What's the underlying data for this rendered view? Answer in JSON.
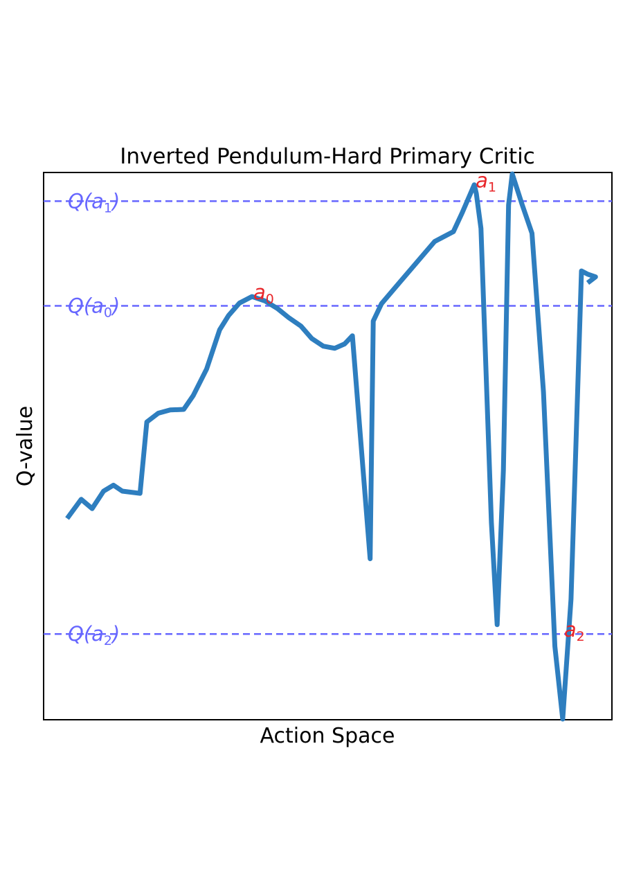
{
  "chart_data": {
    "type": "line",
    "title": "Inverted Pendulum-Hard Primary Critic",
    "xlabel": "Action Space",
    "ylabel": "Q-value",
    "xlim": [
      0,
      1
    ],
    "ylim": [
      0,
      1
    ],
    "ticks_shown": false,
    "grid": false,
    "series": [
      {
        "color": "#2e7ebf",
        "points": [
          [
            0.0,
            0.368
          ],
          [
            0.027,
            0.403
          ],
          [
            0.048,
            0.386
          ],
          [
            0.07,
            0.418
          ],
          [
            0.089,
            0.429
          ],
          [
            0.106,
            0.418
          ],
          [
            0.14,
            0.414
          ],
          [
            0.153,
            0.545
          ],
          [
            0.175,
            0.561
          ],
          [
            0.198,
            0.567
          ],
          [
            0.224,
            0.568
          ],
          [
            0.242,
            0.593
          ],
          [
            0.268,
            0.642
          ],
          [
            0.293,
            0.714
          ],
          [
            0.31,
            0.74
          ],
          [
            0.331,
            0.763
          ],
          [
            0.355,
            0.775
          ],
          [
            0.38,
            0.767
          ],
          [
            0.404,
            0.753
          ],
          [
            0.426,
            0.736
          ],
          [
            0.449,
            0.721
          ],
          [
            0.47,
            0.698
          ],
          [
            0.492,
            0.684
          ],
          [
            0.514,
            0.68
          ],
          [
            0.533,
            0.688
          ],
          [
            0.548,
            0.703
          ],
          [
            0.582,
            0.294
          ],
          [
            0.588,
            0.73
          ],
          [
            0.604,
            0.762
          ],
          [
            0.637,
            0.799
          ],
          [
            0.671,
            0.837
          ],
          [
            0.706,
            0.876
          ],
          [
            0.742,
            0.894
          ],
          [
            0.759,
            0.929
          ],
          [
            0.782,
            0.98
          ],
          [
            0.786,
            0.964
          ],
          [
            0.795,
            0.9
          ],
          [
            0.815,
            0.36
          ],
          [
            0.826,
            0.173
          ],
          [
            0.838,
            0.456
          ],
          [
            0.848,
            0.943
          ],
          [
            0.855,
            1.0
          ],
          [
            0.874,
            0.944
          ],
          [
            0.893,
            0.891
          ],
          [
            0.915,
            0.6
          ],
          [
            0.937,
            0.133
          ],
          [
            0.952,
            0.0
          ],
          [
            0.968,
            0.22
          ],
          [
            0.988,
            0.822
          ],
          [
            1.0,
            0.816
          ],
          [
            1.015,
            0.811
          ],
          [
            1.0,
            0.8
          ]
        ]
      }
    ],
    "reference_lines": [
      {
        "label_base": "Q(a",
        "label_sub": "1",
        "label_close": ")",
        "y": 0.95,
        "color": "#6666ff",
        "style": "dashed"
      },
      {
        "label_base": "Q(a",
        "label_sub": "0",
        "label_close": ")",
        "y": 0.758,
        "color": "#6666ff",
        "style": "dashed"
      },
      {
        "label_base": "Q(a",
        "label_sub": "2",
        "label_close": ")",
        "y": 0.156,
        "color": "#6666ff",
        "style": "dashed"
      }
    ],
    "annotations": [
      {
        "base": "a",
        "sub": "0",
        "x": 0.355,
        "y": 0.775,
        "color": "#e8262a"
      },
      {
        "base": "a",
        "sub": "1",
        "x": 0.782,
        "y": 0.98,
        "color": "#e8262a"
      },
      {
        "base": "a",
        "sub": "2",
        "x": 0.952,
        "y": 0.156,
        "color": "#e8262a"
      }
    ]
  }
}
